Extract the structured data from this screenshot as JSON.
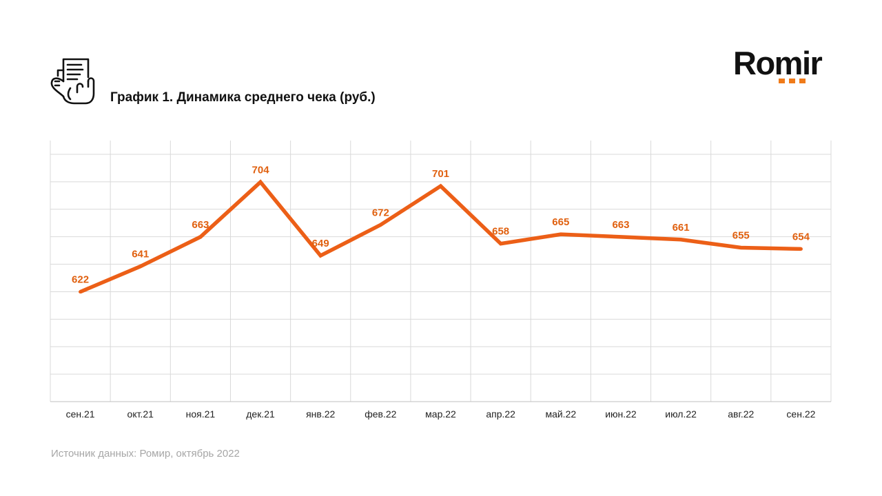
{
  "header": {
    "icon": "receipt-hand-icon",
    "title": "График 1. Динамика среднего чека (руб.)"
  },
  "logo": {
    "text": "Romir",
    "accent_color": "#f07b1a"
  },
  "footer": {
    "source": "Источник данных: Ромир, октябрь 2022"
  },
  "chart_data": {
    "type": "line",
    "title": "График 1. Динамика среднего чека (руб.)",
    "xlabel": "",
    "ylabel": "",
    "categories": [
      "сен.21",
      "окт.21",
      "ноя.21",
      "дек.21",
      "янв.22",
      "фев.22",
      "мар.22",
      "апр.22",
      "май.22",
      "июн.22",
      "июл.22",
      "авг.22",
      "сен.22"
    ],
    "series": [
      {
        "values": [
          622,
          641,
          663,
          704,
          649,
          672,
          701,
          658,
          665,
          663,
          661,
          655,
          654
        ],
        "color": "#ec5f17"
      }
    ],
    "label_color": "#e0600f",
    "ylim": [
      540,
      735
    ],
    "grid": true,
    "grid_color": "#d9d9d9",
    "legend": "none"
  }
}
